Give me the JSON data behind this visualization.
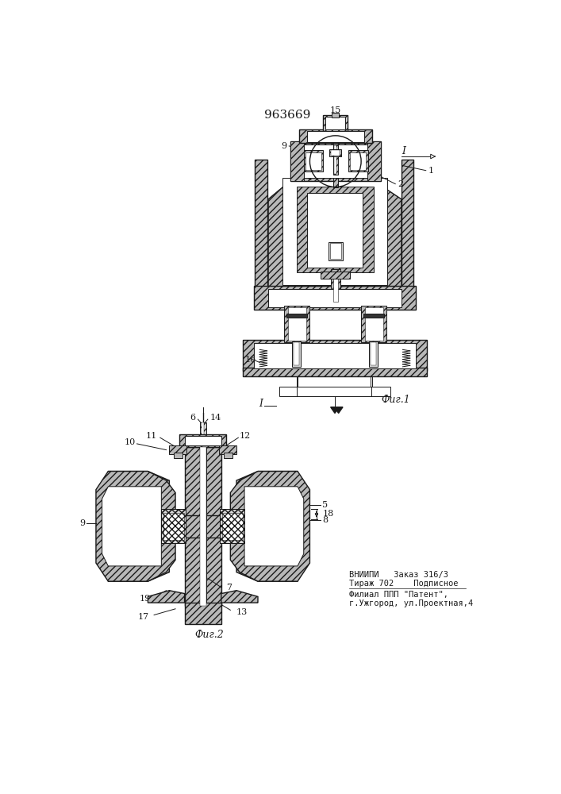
{
  "patent_number": "963669",
  "fig1_label": "Фиг.1",
  "fig2_label": "Фиг.2",
  "cut_label": "I",
  "footer_line1": "ВНИИПИ   Заказ 316/3",
  "footer_line2": "Тираж 702    Подписное",
  "footer_sep": "-------------------------",
  "footer_line3": "Филиал ППП \"Патент\",",
  "footer_line4": "г.Ужгород, ул.Проектная,4",
  "line_color": "#1a1a1a",
  "gray": "#b8b8b8",
  "lgray": "#d5d5d5",
  "white": "#ffffff"
}
